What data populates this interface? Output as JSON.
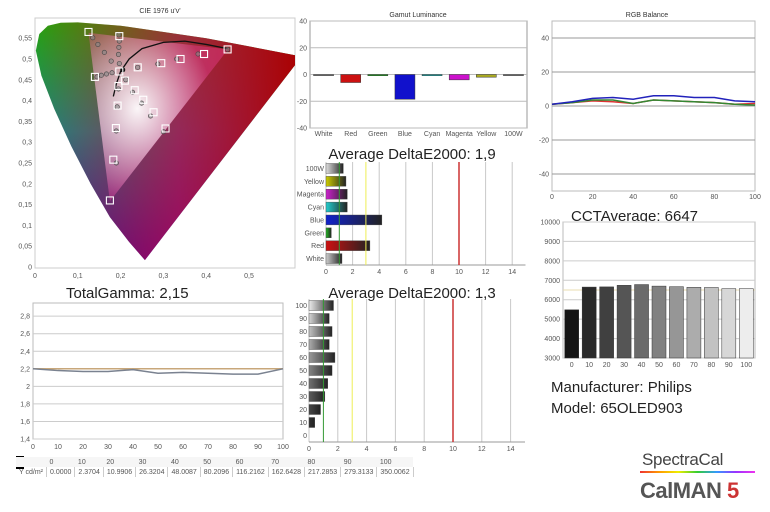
{
  "info": {
    "manufacturer": "Manufacturer: Philips",
    "model": "Model: 65OLED903"
  },
  "logos": {
    "spectracal": "SpectraCal",
    "calman": "CalMAN",
    "calman_version": "5"
  },
  "chart_data": [
    {
      "id": "cie",
      "type": "scatter",
      "title": "CIE 1976 u'v'",
      "xlim": [
        0,
        0.6
      ],
      "ylim": [
        0,
        0.59
      ],
      "xticks": [
        [
          0,
          "0"
        ],
        [
          0.1,
          "0,1"
        ],
        [
          0.2,
          "0,2"
        ],
        [
          0.3,
          "0,3"
        ],
        [
          0.4,
          "0,4"
        ],
        [
          0.5,
          "0,5"
        ]
      ],
      "yticks": [
        [
          0,
          "0"
        ],
        [
          0.05,
          "0,05"
        ],
        [
          0.1,
          "0,1"
        ],
        [
          0.15,
          "0,15"
        ],
        [
          0.2,
          "0,2"
        ],
        [
          0.25,
          "0,25"
        ],
        [
          0.3,
          "0,3"
        ],
        [
          0.35,
          "0,35"
        ],
        [
          0.4,
          "0,4"
        ],
        [
          0.45,
          "0,45"
        ],
        [
          0.5,
          "0,5"
        ],
        [
          0.55,
          "0,55"
        ]
      ],
      "gamut_triangle": [
        [
          0.451,
          0.523
        ],
        [
          0.125,
          0.563
        ],
        [
          0.175,
          0.158
        ]
      ],
      "planckian_locus": [
        [
          0.183,
          0.41
        ],
        [
          0.19,
          0.44
        ],
        [
          0.2,
          0.47
        ],
        [
          0.22,
          0.5
        ],
        [
          0.25,
          0.525
        ],
        [
          0.3,
          0.54
        ],
        [
          0.35,
          0.543
        ],
        [
          0.4,
          0.535
        ],
        [
          0.45,
          0.525
        ]
      ],
      "white_point": [
        0.205,
        0.474
      ],
      "targets": [
        [
          0.125,
          0.565
        ],
        [
          0.197,
          0.555
        ],
        [
          0.14,
          0.457
        ],
        [
          0.197,
          0.47
        ],
        [
          0.21,
          0.448
        ],
        [
          0.195,
          0.435
        ],
        [
          0.24,
          0.48
        ],
        [
          0.295,
          0.49
        ],
        [
          0.34,
          0.5
        ],
        [
          0.395,
          0.512
        ],
        [
          0.45,
          0.523
        ],
        [
          0.233,
          0.425
        ],
        [
          0.253,
          0.402
        ],
        [
          0.277,
          0.372
        ],
        [
          0.305,
          0.333
        ],
        [
          0.193,
          0.388
        ],
        [
          0.189,
          0.334
        ],
        [
          0.183,
          0.258
        ],
        [
          0.175,
          0.16
        ]
      ],
      "measured": [
        [
          0.135,
          0.551
        ],
        [
          0.147,
          0.535
        ],
        [
          0.162,
          0.516
        ],
        [
          0.178,
          0.495
        ],
        [
          0.196,
          0.558
        ],
        [
          0.197,
          0.543
        ],
        [
          0.196,
          0.528
        ],
        [
          0.195,
          0.511
        ],
        [
          0.197,
          0.489
        ],
        [
          0.145,
          0.457
        ],
        [
          0.155,
          0.461
        ],
        [
          0.167,
          0.464
        ],
        [
          0.18,
          0.467
        ],
        [
          0.212,
          0.45
        ],
        [
          0.195,
          0.428
        ],
        [
          0.228,
          0.42
        ],
        [
          0.249,
          0.394
        ],
        [
          0.27,
          0.363
        ],
        [
          0.3,
          0.325
        ],
        [
          0.192,
          0.385
        ],
        [
          0.19,
          0.327
        ],
        [
          0.19,
          0.25
        ],
        [
          0.24,
          0.48
        ],
        [
          0.287,
          0.488
        ],
        [
          0.331,
          0.5
        ],
        [
          0.381,
          0.512
        ],
        [
          0.45,
          0.523
        ]
      ]
    },
    {
      "id": "gamut-luminance",
      "type": "bar",
      "title": "Gamut Luminance",
      "categories": [
        "White",
        "Red",
        "Green",
        "Blue",
        "Cyan",
        "Magenta",
        "Yellow",
        "100W"
      ],
      "values": [
        0,
        -6,
        -0.5,
        -18.5,
        0,
        -4,
        -2,
        0
      ],
      "colors": [
        "#888888",
        "#cc1111",
        "#11aa11",
        "#1111cc",
        "#11bbbb",
        "#cc11cc",
        "#aaaa22",
        "#888888"
      ],
      "ylim": [
        -40,
        40
      ],
      "yticks": [
        [
          -40,
          "-40"
        ],
        [
          -20,
          "-20"
        ],
        [
          0,
          "0"
        ],
        [
          20,
          "20"
        ],
        [
          40,
          "40"
        ]
      ]
    },
    {
      "id": "deltae-colors",
      "type": "bar",
      "orientation": "horizontal",
      "title": "Average DeltaE2000: 1,9",
      "categories": [
        "100W",
        "Yellow",
        "Magenta",
        "Cyan",
        "Blue",
        "Green",
        "Red",
        "White"
      ],
      "values": [
        1.3,
        1.5,
        1.6,
        1.6,
        4.2,
        0.4,
        3.3,
        1.2
      ],
      "colors": [
        "#dddddd",
        "#cccc00",
        "#cc22cc",
        "#22cccc",
        "#1122cc",
        "#22bb22",
        "#cc1111",
        "#cccccc"
      ],
      "xlim": [
        0,
        15
      ],
      "xticks": [
        [
          0,
          "0"
        ],
        [
          2,
          "2"
        ],
        [
          4,
          "4"
        ],
        [
          6,
          "6"
        ],
        [
          8,
          "8"
        ],
        [
          10,
          "10"
        ],
        [
          12,
          "12"
        ],
        [
          14,
          "14"
        ]
      ],
      "reference_lines": [
        {
          "value": 1,
          "color": "#339933"
        },
        {
          "value": 3,
          "color": "#eeee55"
        },
        {
          "value": 10,
          "color": "#cc3333"
        }
      ]
    },
    {
      "id": "rgb-balance",
      "type": "line",
      "title": "RGB Balance",
      "x": [
        0,
        10,
        20,
        30,
        40,
        50,
        60,
        70,
        80,
        90,
        100
      ],
      "series": [
        {
          "color": "#dd3333",
          "values": [
            1,
            2,
            3,
            2.5,
            1.5,
            3.5,
            3,
            2.5,
            2,
            1,
            1.5
          ]
        },
        {
          "color": "#338833",
          "values": [
            1,
            2,
            3.5,
            3.5,
            1.5,
            3.5,
            3,
            2.5,
            2,
            1,
            0.5
          ]
        },
        {
          "color": "#2222bb",
          "values": [
            1,
            2.5,
            4.5,
            5,
            4,
            6,
            6,
            5,
            5,
            3,
            2.5
          ]
        }
      ],
      "xlim": [
        0,
        100
      ],
      "ylim": [
        -50,
        50
      ],
      "xticks": [
        [
          0,
          "0"
        ],
        [
          20,
          "20"
        ],
        [
          40,
          "40"
        ],
        [
          60,
          "60"
        ],
        [
          80,
          "80"
        ],
        [
          100,
          "100"
        ]
      ],
      "yticks": [
        [
          -40,
          "-40"
        ],
        [
          -20,
          "-20"
        ],
        [
          0,
          "0"
        ],
        [
          20,
          "20"
        ],
        [
          40,
          "40"
        ]
      ]
    },
    {
      "id": "cct",
      "type": "bar",
      "title": "CCTAverage: 6647",
      "categories": [
        "0",
        "10",
        "20",
        "30",
        "40",
        "50",
        "60",
        "70",
        "80",
        "90",
        "100"
      ],
      "values": [
        5480,
        6650,
        6660,
        6740,
        6780,
        6700,
        6670,
        6640,
        6630,
        6570,
        6570
      ],
      "reference_line": 6500,
      "ylim": [
        3000,
        10000
      ],
      "yticks": [
        [
          3000,
          "3000"
        ],
        [
          4000,
          "4000"
        ],
        [
          5000,
          "5000"
        ],
        [
          6000,
          "6000"
        ],
        [
          7000,
          "7000"
        ],
        [
          8000,
          "8000"
        ],
        [
          9000,
          "9000"
        ],
        [
          10000,
          "10000"
        ]
      ]
    },
    {
      "id": "gamma",
      "type": "line",
      "title": "TotalGamma: 2,15",
      "x": [
        0,
        10,
        20,
        30,
        40,
        50,
        60,
        70,
        80,
        90,
        100
      ],
      "series": [
        {
          "color": "#c8a77a",
          "values": [
            2.2,
            2.2,
            2.2,
            2.2,
            2.2,
            2.2,
            2.2,
            2.2,
            2.2,
            2.2,
            2.2
          ]
        },
        {
          "color": "#7a8290",
          "values": [
            2.2,
            2.18,
            2.17,
            2.17,
            2.19,
            2.15,
            2.16,
            2.15,
            2.14,
            2.14,
            2.2
          ]
        }
      ],
      "xlim": [
        0,
        100
      ],
      "ylim": [
        1.4,
        2.95
      ],
      "xticks": [
        [
          0,
          "0"
        ],
        [
          10,
          "10"
        ],
        [
          20,
          "20"
        ],
        [
          30,
          "30"
        ],
        [
          40,
          "40"
        ],
        [
          50,
          "50"
        ],
        [
          60,
          "60"
        ],
        [
          70,
          "70"
        ],
        [
          80,
          "80"
        ],
        [
          90,
          "90"
        ],
        [
          100,
          "100"
        ]
      ],
      "yticks": [
        [
          1.4,
          "1,4"
        ],
        [
          1.6,
          "1,6"
        ],
        [
          1.8,
          "1,8"
        ],
        [
          2,
          "2"
        ],
        [
          2.2,
          "2,2"
        ],
        [
          2.4,
          "2,4"
        ],
        [
          2.6,
          "2,6"
        ],
        [
          2.8,
          "2,8"
        ]
      ]
    },
    {
      "id": "deltae-grayscale",
      "type": "bar",
      "orientation": "horizontal",
      "title": "Average DeltaE2000: 1,3",
      "categories": [
        "100",
        "90",
        "80",
        "70",
        "60",
        "50",
        "40",
        "30",
        "20",
        "10",
        "0"
      ],
      "values": [
        1.7,
        1.4,
        1.6,
        1.4,
        1.8,
        1.6,
        1.3,
        1.1,
        0.8,
        0.4,
        0
      ],
      "xlim": [
        0,
        15
      ],
      "xticks": [
        [
          0,
          "0"
        ],
        [
          2,
          "2"
        ],
        [
          4,
          "4"
        ],
        [
          6,
          "6"
        ],
        [
          8,
          "8"
        ],
        [
          10,
          "10"
        ],
        [
          12,
          "12"
        ],
        [
          14,
          "14"
        ]
      ],
      "reference_lines": [
        {
          "value": 1,
          "color": "#339933"
        },
        {
          "value": 3,
          "color": "#eeee55"
        },
        {
          "value": 10,
          "color": "#cc3333"
        }
      ]
    },
    {
      "id": "luminance-table",
      "type": "table",
      "header": [
        "0",
        "10",
        "20",
        "30",
        "40",
        "50",
        "60",
        "70",
        "80",
        "90",
        "100"
      ],
      "row_label": "Y cd/m²",
      "values": [
        "0.0000",
        "2.3704",
        "10.9906",
        "26.3204",
        "48.0087",
        "80.2096",
        "116.2162",
        "162.6428",
        "217.2853",
        "279.3133",
        "350.0062"
      ]
    }
  ]
}
